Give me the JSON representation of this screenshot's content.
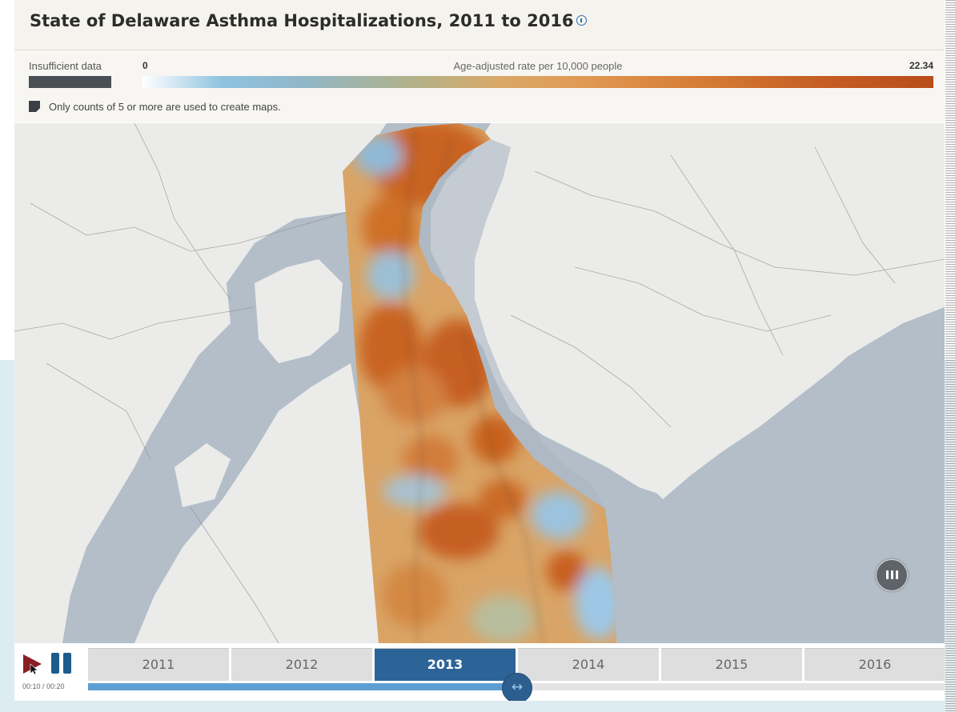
{
  "header": {
    "title": "State of Delaware Asthma Hospitalizations, 2011 to 2016",
    "info_icon": "info-icon"
  },
  "legend": {
    "insufficient_label": "Insufficient data",
    "insufficient_color": "#4a4f55",
    "scale_min": "0",
    "scale_title": "Age-adjusted rate per 10,000 people",
    "scale_max": "22.34",
    "scale_colors": [
      "#ffffff",
      "#8fc3e0",
      "#b1b189",
      "#e09a55",
      "#c65f24",
      "#b84d1b"
    ],
    "note": "Only counts of 5 or more are used to create maps."
  },
  "map": {
    "water_color": "#b3bec8",
    "land_color": "#ebebea",
    "pause_icon": "pause-icon"
  },
  "controls": {
    "play_icon": "play-icon",
    "pause_icon": "pause-icon",
    "time": "00:10 / 00:20",
    "years": [
      "2011",
      "2012",
      "2013",
      "2014",
      "2015",
      "2016"
    ],
    "selected_year": "2013",
    "progress": 0.5
  }
}
